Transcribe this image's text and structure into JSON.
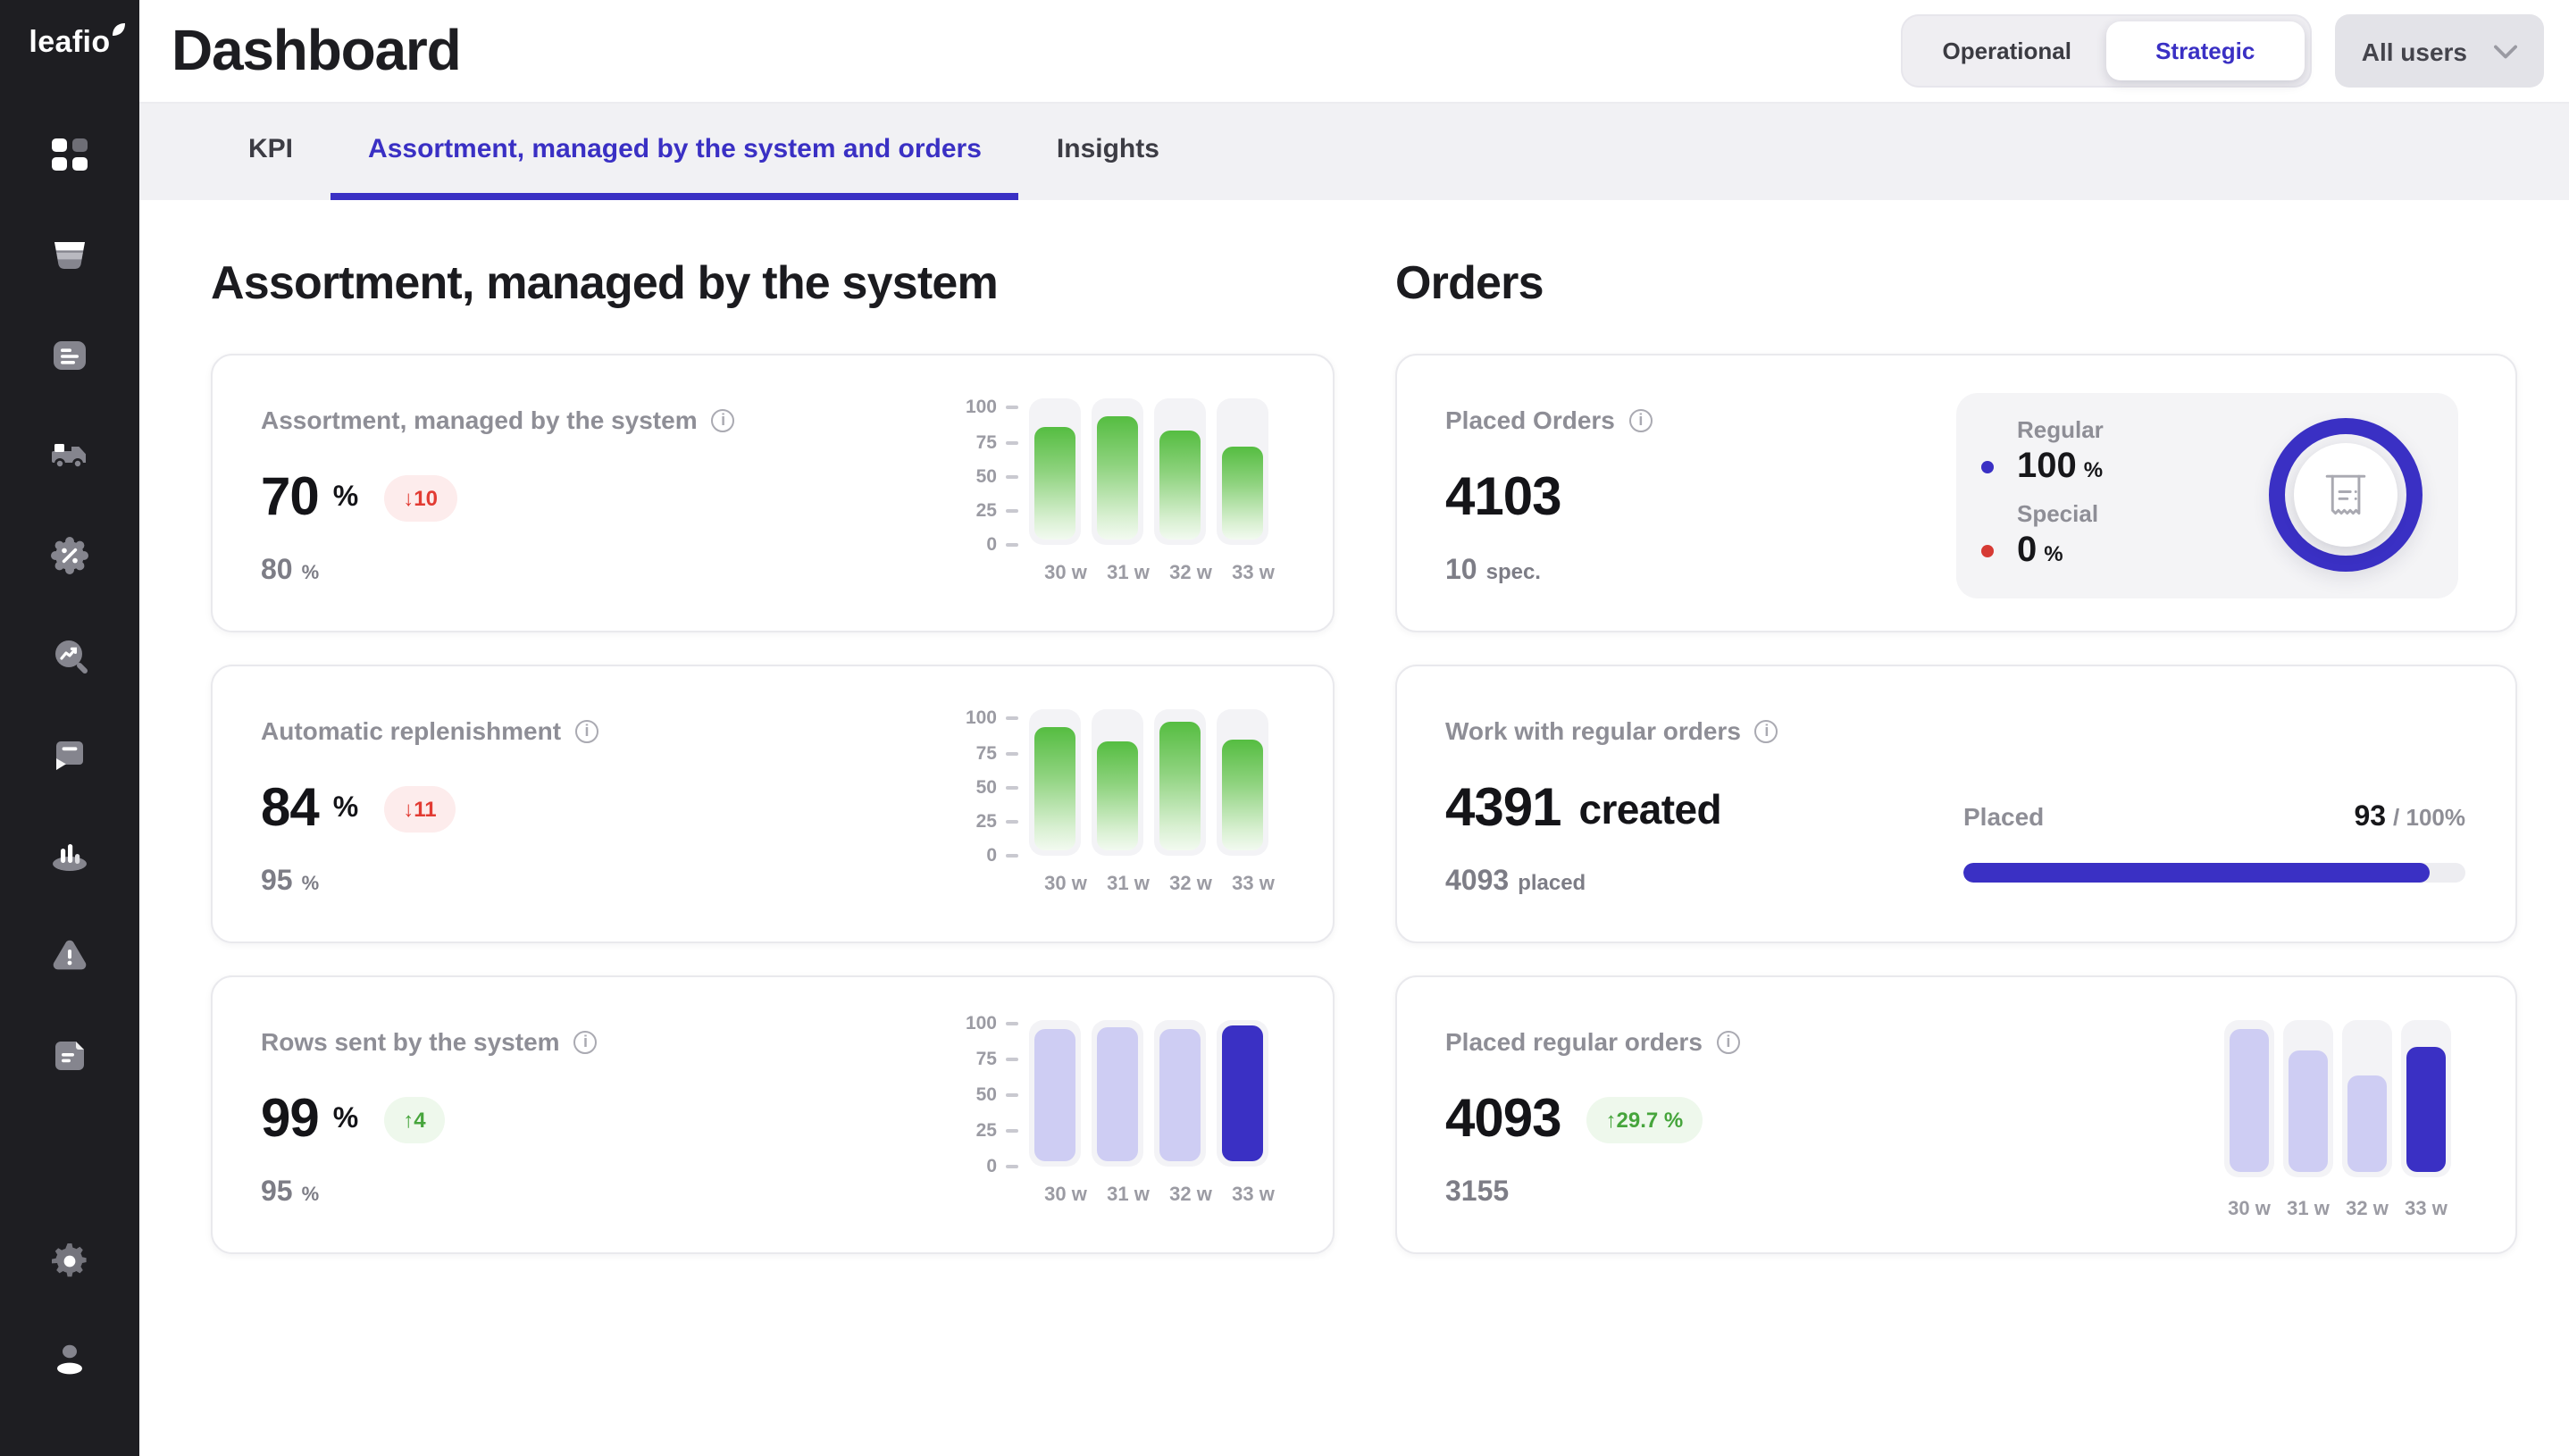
{
  "app": {
    "logo": "leafio"
  },
  "sidebar": {
    "items": [
      "dashboard",
      "store",
      "documents",
      "delivery",
      "promotions",
      "analytics-search",
      "saved-labels",
      "levels",
      "alerts",
      "reports",
      "settings",
      "profile"
    ]
  },
  "header": {
    "title": "Dashboard",
    "view_toggle": {
      "options": [
        "Operational",
        "Strategic"
      ],
      "active": "Strategic"
    },
    "user_filter": {
      "value": "All users"
    }
  },
  "tabs": {
    "items": [
      {
        "label": "KPI"
      },
      {
        "label": "Assortment, managed by the system and orders"
      },
      {
        "label": "Insights"
      }
    ],
    "active": "Assortment, managed by the system and orders"
  },
  "sections": {
    "assortment_title": "Assortment, managed by the system",
    "orders_title": "Orders"
  },
  "cards": {
    "assortment": {
      "title": "Assortment, managed by the system",
      "value": "70",
      "unit": "%",
      "delta": "↓10",
      "delta_direction": "down",
      "target": "80",
      "target_unit": "%",
      "chart": {
        "type": "bar",
        "categories": [
          "30 w",
          "31 w",
          "32 w",
          "33 w"
        ],
        "values": [
          85,
          94,
          82,
          70
        ],
        "y_ticks": [
          100,
          75,
          50,
          25,
          0
        ],
        "ymax": 107,
        "bar_style": "green"
      }
    },
    "replenishment": {
      "title": "Automatic replenishment",
      "value": "84",
      "unit": "%",
      "delta": "↓11",
      "delta_direction": "down",
      "target": "95",
      "target_unit": "%",
      "chart": {
        "type": "bar",
        "categories": [
          "30 w",
          "31 w",
          "32 w",
          "33 w"
        ],
        "values": [
          93,
          82,
          98,
          84
        ],
        "y_ticks": [
          100,
          75,
          50,
          25,
          0
        ],
        "ymax": 107,
        "bar_style": "green"
      }
    },
    "rows_sent": {
      "title": "Rows sent by the system",
      "value": "99",
      "unit": "%",
      "delta": "↑4",
      "delta_direction": "up",
      "target": "95",
      "target_unit": "%",
      "chart": {
        "type": "bar",
        "categories": [
          "30 w",
          "31 w",
          "32 w",
          "33 w"
        ],
        "values": [
          97,
          98,
          96,
          99
        ],
        "y_ticks": [
          100,
          75,
          50,
          25,
          0
        ],
        "ymax": 103,
        "bar_style": "lavender",
        "highlight_last": true,
        "highlight_style": "indigo"
      }
    },
    "placed_orders": {
      "title": "Placed Orders",
      "value": "4103",
      "sub_value": "10",
      "sub_unit": "spec.",
      "donut": {
        "type": "donut",
        "legend": [
          {
            "label": "Regular",
            "value": "100",
            "unit": "%",
            "color": "#3a30c4"
          },
          {
            "label": "Special",
            "value": "0",
            "unit": "%",
            "color": "#d63a34"
          }
        ]
      }
    },
    "work_regular": {
      "title": "Work with regular orders",
      "value": "4391",
      "value_suffix": "created",
      "sub_value": "4093",
      "sub_unit": "placed",
      "progress": {
        "label": "Placed",
        "current": "93",
        "total": "/ 100%",
        "percent": 93
      }
    },
    "placed_regular": {
      "title": "Placed regular orders",
      "value": "4093",
      "delta": "↑29.7 %",
      "delta_direction": "up",
      "sub_value": "3155",
      "chart": {
        "type": "bar",
        "categories": [
          "30 w",
          "31 w",
          "32 w",
          "33 w"
        ],
        "values": [
          99,
          84,
          67,
          87
        ],
        "ymax": 105,
        "bar_style": "lavender",
        "highlight_last": true,
        "highlight_style": "indigo"
      }
    }
  },
  "colors": {
    "accent": "#3a30c4",
    "negative": "#e23b33",
    "positive": "#46a53c",
    "bar_green": "#55bd41",
    "bar_lavender": "#cecdf3",
    "sidebar_bg": "#1e1e22",
    "special_red": "#d63a34"
  },
  "chart_data": [
    {
      "id": "assortment_weekly",
      "type": "bar",
      "title": "Assortment, managed by the system",
      "categories": [
        "30 w",
        "31 w",
        "32 w",
        "33 w"
      ],
      "values": [
        85,
        94,
        82,
        70
      ],
      "ylim": [
        0,
        100
      ]
    },
    {
      "id": "replenishment_weekly",
      "type": "bar",
      "title": "Automatic replenishment",
      "categories": [
        "30 w",
        "31 w",
        "32 w",
        "33 w"
      ],
      "values": [
        93,
        82,
        98,
        84
      ],
      "ylim": [
        0,
        100
      ]
    },
    {
      "id": "rows_sent_weekly",
      "type": "bar",
      "title": "Rows sent by the system",
      "categories": [
        "30 w",
        "31 w",
        "32 w",
        "33 w"
      ],
      "values": [
        97,
        98,
        96,
        99
      ],
      "ylim": [
        0,
        100
      ]
    },
    {
      "id": "placed_orders_split",
      "type": "pie",
      "labels": [
        "Regular",
        "Special"
      ],
      "values": [
        100,
        0
      ]
    },
    {
      "id": "work_regular_progress",
      "type": "bar",
      "labels": [
        "Placed"
      ],
      "values": [
        93
      ],
      "ylim": [
        0,
        100
      ]
    },
    {
      "id": "placed_regular_weekly",
      "type": "bar",
      "title": "Placed regular orders",
      "categories": [
        "30 w",
        "31 w",
        "32 w",
        "33 w"
      ],
      "values": [
        99,
        84,
        67,
        87
      ]
    }
  ]
}
